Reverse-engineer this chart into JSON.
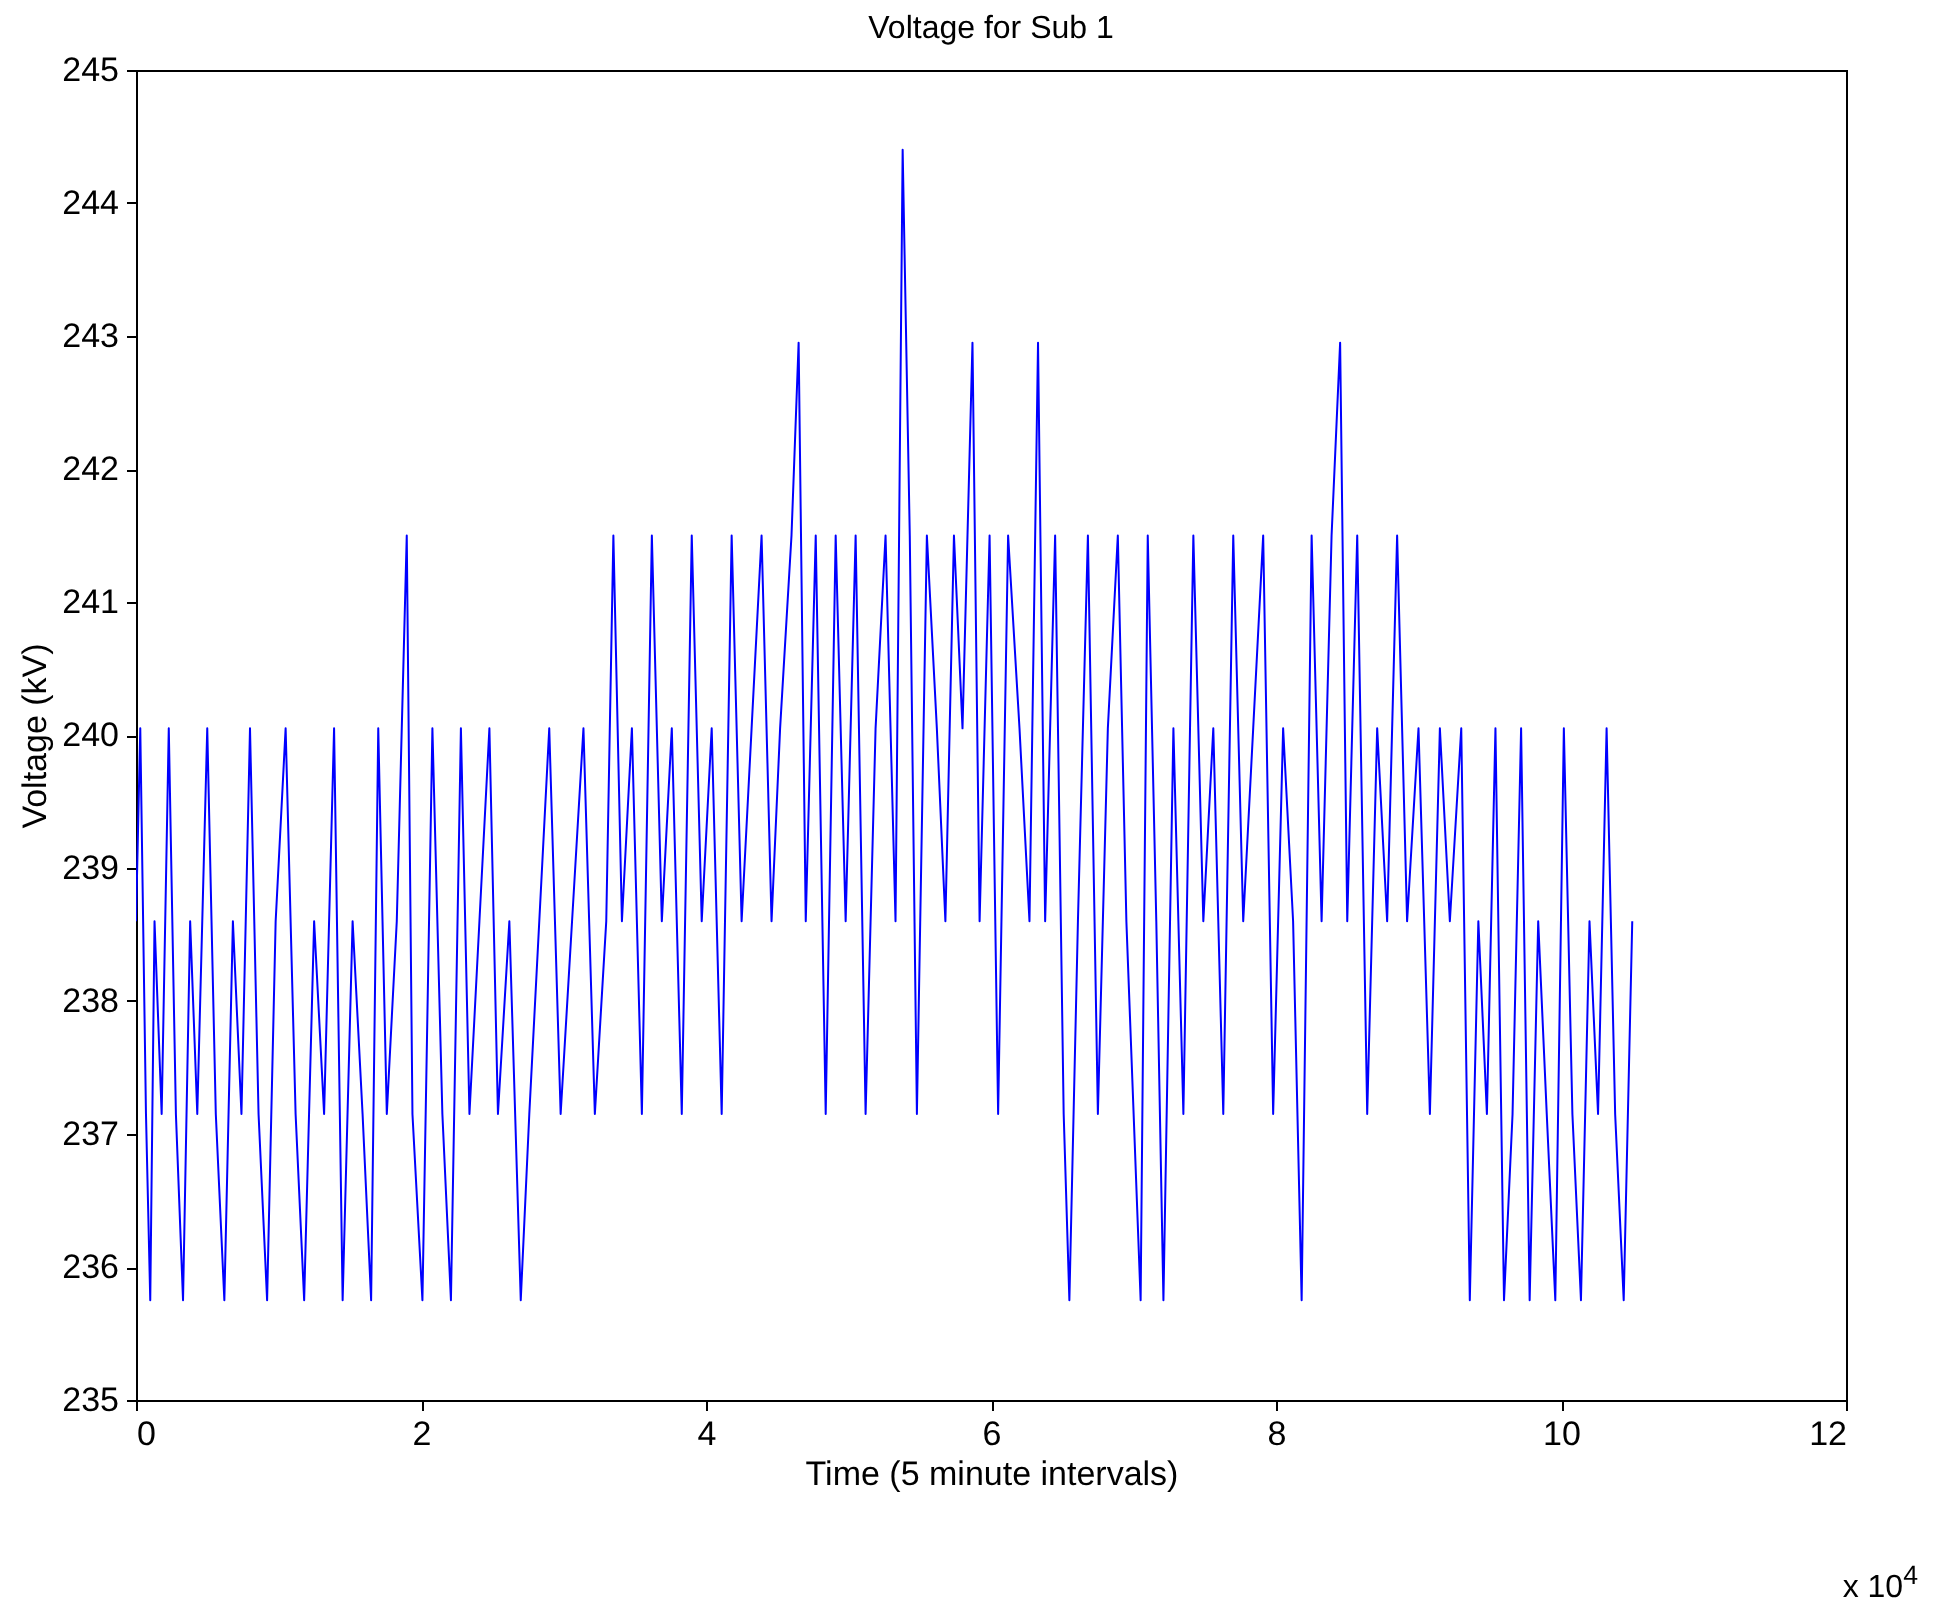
{
  "chart_data": {
    "type": "line",
    "title": "Voltage for Sub 1",
    "xlabel": "Time (5 minute intervals)",
    "ylabel": "Voltage (kV)",
    "annotations": [
      "x 10$^{4}$"
    ],
    "xlim": [
      0,
      12
    ],
    "xticks": [
      0,
      2,
      4,
      6,
      8,
      10,
      12
    ],
    "ylim": [
      235,
      245
    ],
    "yticks": [
      235,
      236,
      237,
      238,
      239,
      240,
      241,
      242,
      243,
      244,
      245
    ],
    "grid": false,
    "series": [
      {
        "color": "#0000ff",
        "x": [
          0,
          0.03,
          0.07,
          0.1,
          0.13,
          0.18,
          0.23,
          0.28,
          0.33,
          0.38,
          0.43,
          0.5,
          0.56,
          0.62,
          0.68,
          0.74,
          0.8,
          0.86,
          0.92,
          0.98,
          1.05,
          1.12,
          1.18,
          1.25,
          1.32,
          1.39,
          1.45,
          1.52,
          1.59,
          1.65,
          1.7,
          1.76,
          1.83,
          1.9,
          1.94,
          2.01,
          2.08,
          2.15,
          2.21,
          2.28,
          2.34,
          2.41,
          2.48,
          2.54,
          2.62,
          2.7,
          2.76,
          2.83,
          2.9,
          2.98,
          3.06,
          3.14,
          3.22,
          3.3,
          3.35,
          3.41,
          3.48,
          3.55,
          3.62,
          3.69,
          3.76,
          3.83,
          3.9,
          3.97,
          4.04,
          4.11,
          4.18,
          4.25,
          4.32,
          4.39,
          4.46,
          4.52,
          4.6,
          4.65,
          4.7,
          4.77,
          4.84,
          4.91,
          4.98,
          5.05,
          5.12,
          5.19,
          5.26,
          5.33,
          5.38,
          5.43,
          5.48,
          5.55,
          5.62,
          5.68,
          5.74,
          5.8,
          5.87,
          5.92,
          5.99,
          6.05,
          6.12,
          6.2,
          6.27,
          6.33,
          6.38,
          6.45,
          6.51,
          6.55,
          6.61,
          6.68,
          6.75,
          6.82,
          6.89,
          6.95,
          7.05,
          7.1,
          7.16,
          7.21,
          7.28,
          7.35,
          7.42,
          7.49,
          7.56,
          7.63,
          7.7,
          7.77,
          7.84,
          7.91,
          7.98,
          8.05,
          8.12,
          8.18,
          8.25,
          8.32,
          8.39,
          8.45,
          8.5,
          8.57,
          8.64,
          8.71,
          8.78,
          8.85,
          8.92,
          9,
          9.08,
          9.15,
          9.22,
          9.3,
          9.36,
          9.42,
          9.48,
          9.54,
          9.6,
          9.66,
          9.72,
          9.78,
          9.84,
          9.9,
          9.96,
          10.02,
          10.08,
          10.14,
          10.2,
          10.26,
          10.32,
          10.38,
          10.44,
          10.5
        ],
        "values": [
          238.6,
          240.05,
          237.15,
          235.75,
          238.6,
          237.15,
          240.05,
          237.15,
          235.75,
          238.6,
          237.15,
          240.05,
          237.15,
          235.75,
          238.6,
          237.15,
          240.05,
          237.15,
          235.75,
          238.6,
          240.05,
          237.15,
          235.75,
          238.6,
          237.15,
          240.05,
          235.75,
          238.6,
          237.15,
          235.75,
          240.05,
          237.15,
          238.6,
          241.5,
          237.15,
          235.75,
          240.05,
          237.15,
          235.75,
          240.05,
          237.15,
          238.6,
          240.05,
          237.15,
          238.6,
          235.75,
          237.15,
          238.6,
          240.05,
          237.15,
          238.6,
          240.05,
          237.15,
          238.6,
          241.5,
          238.6,
          240.05,
          237.15,
          241.5,
          238.6,
          240.05,
          237.15,
          241.5,
          238.6,
          240.05,
          237.15,
          241.5,
          238.6,
          240.05,
          241.5,
          238.6,
          240.05,
          241.5,
          242.95,
          238.6,
          241.5,
          237.15,
          241.5,
          238.6,
          241.5,
          237.15,
          240.05,
          241.5,
          238.6,
          244.4,
          241.5,
          237.15,
          241.5,
          240.05,
          238.6,
          241.5,
          240.05,
          242.95,
          238.6,
          241.5,
          237.15,
          241.5,
          240.05,
          238.6,
          242.95,
          238.6,
          241.5,
          237.15,
          235.75,
          238.6,
          241.5,
          237.15,
          240.05,
          241.5,
          238.6,
          235.75,
          241.5,
          238.6,
          235.75,
          240.05,
          237.15,
          241.5,
          238.6,
          240.05,
          237.15,
          241.5,
          238.6,
          240.05,
          241.5,
          237.15,
          240.05,
          238.6,
          235.75,
          241.5,
          238.6,
          241.5,
          242.95,
          238.6,
          241.5,
          237.15,
          240.05,
          238.6,
          241.5,
          238.6,
          240.05,
          237.15,
          240.05,
          238.6,
          240.05,
          235.75,
          238.6,
          237.15,
          240.05,
          235.75,
          237.15,
          240.05,
          235.75,
          238.6,
          237.15,
          235.75,
          240.05,
          237.15,
          235.75,
          238.6,
          237.15,
          240.05,
          237.15,
          235.75,
          238.6
        ]
      }
    ]
  }
}
